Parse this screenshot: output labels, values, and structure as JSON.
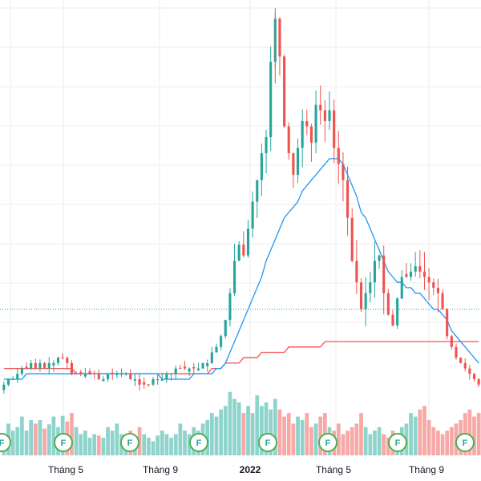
{
  "chart_data": {
    "type": "candlestick",
    "x_axis_labels": [
      "Tháng 5",
      "Tháng 9",
      "2022",
      "Tháng 5",
      "Tháng 9"
    ],
    "x_axis_label_bold": [
      false,
      false,
      true,
      false,
      false
    ],
    "y_axis": "not visible",
    "grid": true,
    "colors": {
      "up": "#26a69a",
      "down": "#ef5350",
      "volume_up": "#8fd3cd",
      "volume_down": "#f7a9a7",
      "ma_short": "#2196f3",
      "ma_long": "#ef5350",
      "price_line": "#26a69a",
      "badge": "#4caf50",
      "grid": "#eceef2"
    },
    "badge_label": "F",
    "badge_count": 8,
    "series_notes": "Candles trace a flat base near 17 through late 2021, a rally peaking near 80 in early 2022, then a decline to around 17 by late 2022; two moving averages (blue, red) and a volume histogram beneath.",
    "key_points": [
      {
        "period": "early 2021",
        "close": 16
      },
      {
        "period": "late 2021 base",
        "close": 15
      },
      {
        "period": "late 2021 breakout",
        "close": 30
      },
      {
        "period": "early 2022 peak high",
        "close": 80
      },
      {
        "period": "2022 top range",
        "close": 65
      },
      {
        "period": "mid 2022 low",
        "close": 35
      },
      {
        "period": "rebound",
        "close": 42
      },
      {
        "period": "late 2022",
        "close": 17
      }
    ],
    "current_price_line": 28,
    "close": [
      14,
      15,
      15,
      16,
      17,
      17,
      18,
      17,
      18,
      17,
      18,
      18,
      19,
      19,
      18,
      16,
      16,
      16,
      16,
      16,
      16,
      15,
      15,
      16,
      16,
      16,
      16,
      16,
      15,
      15,
      14,
      14,
      14,
      15,
      15,
      15,
      16,
      16,
      17,
      17,
      17,
      17,
      17,
      17,
      18,
      18,
      20,
      21,
      23,
      26,
      31,
      37,
      40,
      38,
      43,
      48,
      52,
      57,
      60,
      74,
      82,
      75,
      62,
      57,
      53,
      58,
      63,
      62,
      59,
      66,
      65,
      63,
      65,
      58,
      55,
      52,
      45,
      37,
      33,
      28,
      31,
      33,
      37,
      38,
      31,
      27,
      25,
      30,
      34,
      34,
      35,
      36,
      35,
      34,
      33,
      32,
      31,
      28,
      23,
      21,
      19,
      18,
      17,
      16,
      15,
      14
    ],
    "ma_short": [
      15,
      15,
      15,
      15,
      15,
      16,
      16,
      16,
      16,
      16,
      16,
      16,
      16,
      16,
      16,
      16,
      16,
      16,
      16,
      16,
      16,
      16,
      16,
      16,
      16,
      16,
      16,
      16,
      16,
      16,
      16,
      16,
      16,
      16,
      16,
      15,
      15,
      15,
      15,
      15,
      15,
      15,
      16,
      16,
      16,
      16,
      16,
      17,
      17,
      18,
      20,
      22,
      24,
      26,
      28,
      30,
      32,
      34,
      37,
      39,
      41,
      43,
      45,
      46,
      47,
      48,
      50,
      51,
      52,
      53,
      54,
      55,
      56,
      56,
      56,
      55,
      53,
      51,
      49,
      46,
      45,
      43,
      41,
      39,
      37,
      35,
      34,
      33,
      33,
      32,
      32,
      31,
      31,
      30,
      29,
      28,
      28,
      27,
      26,
      24,
      23,
      22,
      21,
      20,
      19,
      18
    ],
    "ma_long": [
      17,
      17,
      17,
      17,
      17,
      17,
      17,
      17,
      17,
      17,
      17,
      17,
      17,
      17,
      17,
      17,
      16,
      16,
      16,
      16,
      16,
      16,
      16,
      16,
      16,
      16,
      16,
      16,
      16,
      16,
      16,
      16,
      16,
      16,
      16,
      16,
      16,
      16,
      16,
      16,
      16,
      16,
      16,
      16,
      16,
      16,
      17,
      17,
      17,
      18,
      18,
      18,
      18,
      19,
      19,
      19,
      19,
      20,
      20,
      20,
      20,
      20,
      20,
      21,
      21,
      21,
      21,
      21,
      21,
      21,
      21,
      22,
      22,
      22,
      22,
      22,
      22,
      22,
      22,
      22,
      22,
      22,
      22,
      22,
      22,
      22,
      22,
      22,
      22,
      22,
      22,
      22,
      22,
      22,
      22,
      22,
      22,
      22,
      22,
      22,
      22,
      22,
      22,
      22,
      22,
      22
    ],
    "volume": [
      0.3,
      0.45,
      0.35,
      0.4,
      0.55,
      0.35,
      0.5,
      0.45,
      0.5,
      0.38,
      0.44,
      0.55,
      0.4,
      0.56,
      0.48,
      0.6,
      0.4,
      0.3,
      0.35,
      0.25,
      0.3,
      0.28,
      0.25,
      0.4,
      0.35,
      0.45,
      0.3,
      0.28,
      0.35,
      0.25,
      0.4,
      0.3,
      0.25,
      0.2,
      0.28,
      0.35,
      0.3,
      0.25,
      0.3,
      0.45,
      0.35,
      0.3,
      0.4,
      0.35,
      0.45,
      0.5,
      0.6,
      0.55,
      0.65,
      0.7,
      0.9,
      0.8,
      0.75,
      0.6,
      0.7,
      0.6,
      0.85,
      0.7,
      0.75,
      0.65,
      0.8,
      0.65,
      0.55,
      0.6,
      0.45,
      0.55,
      0.5,
      0.6,
      0.4,
      0.45,
      0.55,
      0.6,
      0.4,
      0.35,
      0.45,
      0.3,
      0.35,
      0.4,
      0.45,
      0.6,
      0.4,
      0.3,
      0.35,
      0.4,
      0.3,
      0.25,
      0.35,
      0.3,
      0.4,
      0.45,
      0.6,
      0.55,
      0.65,
      0.7,
      0.5,
      0.4,
      0.35,
      0.3,
      0.35,
      0.4,
      0.45,
      0.5,
      0.6,
      0.65,
      0.55,
      0.6
    ]
  }
}
